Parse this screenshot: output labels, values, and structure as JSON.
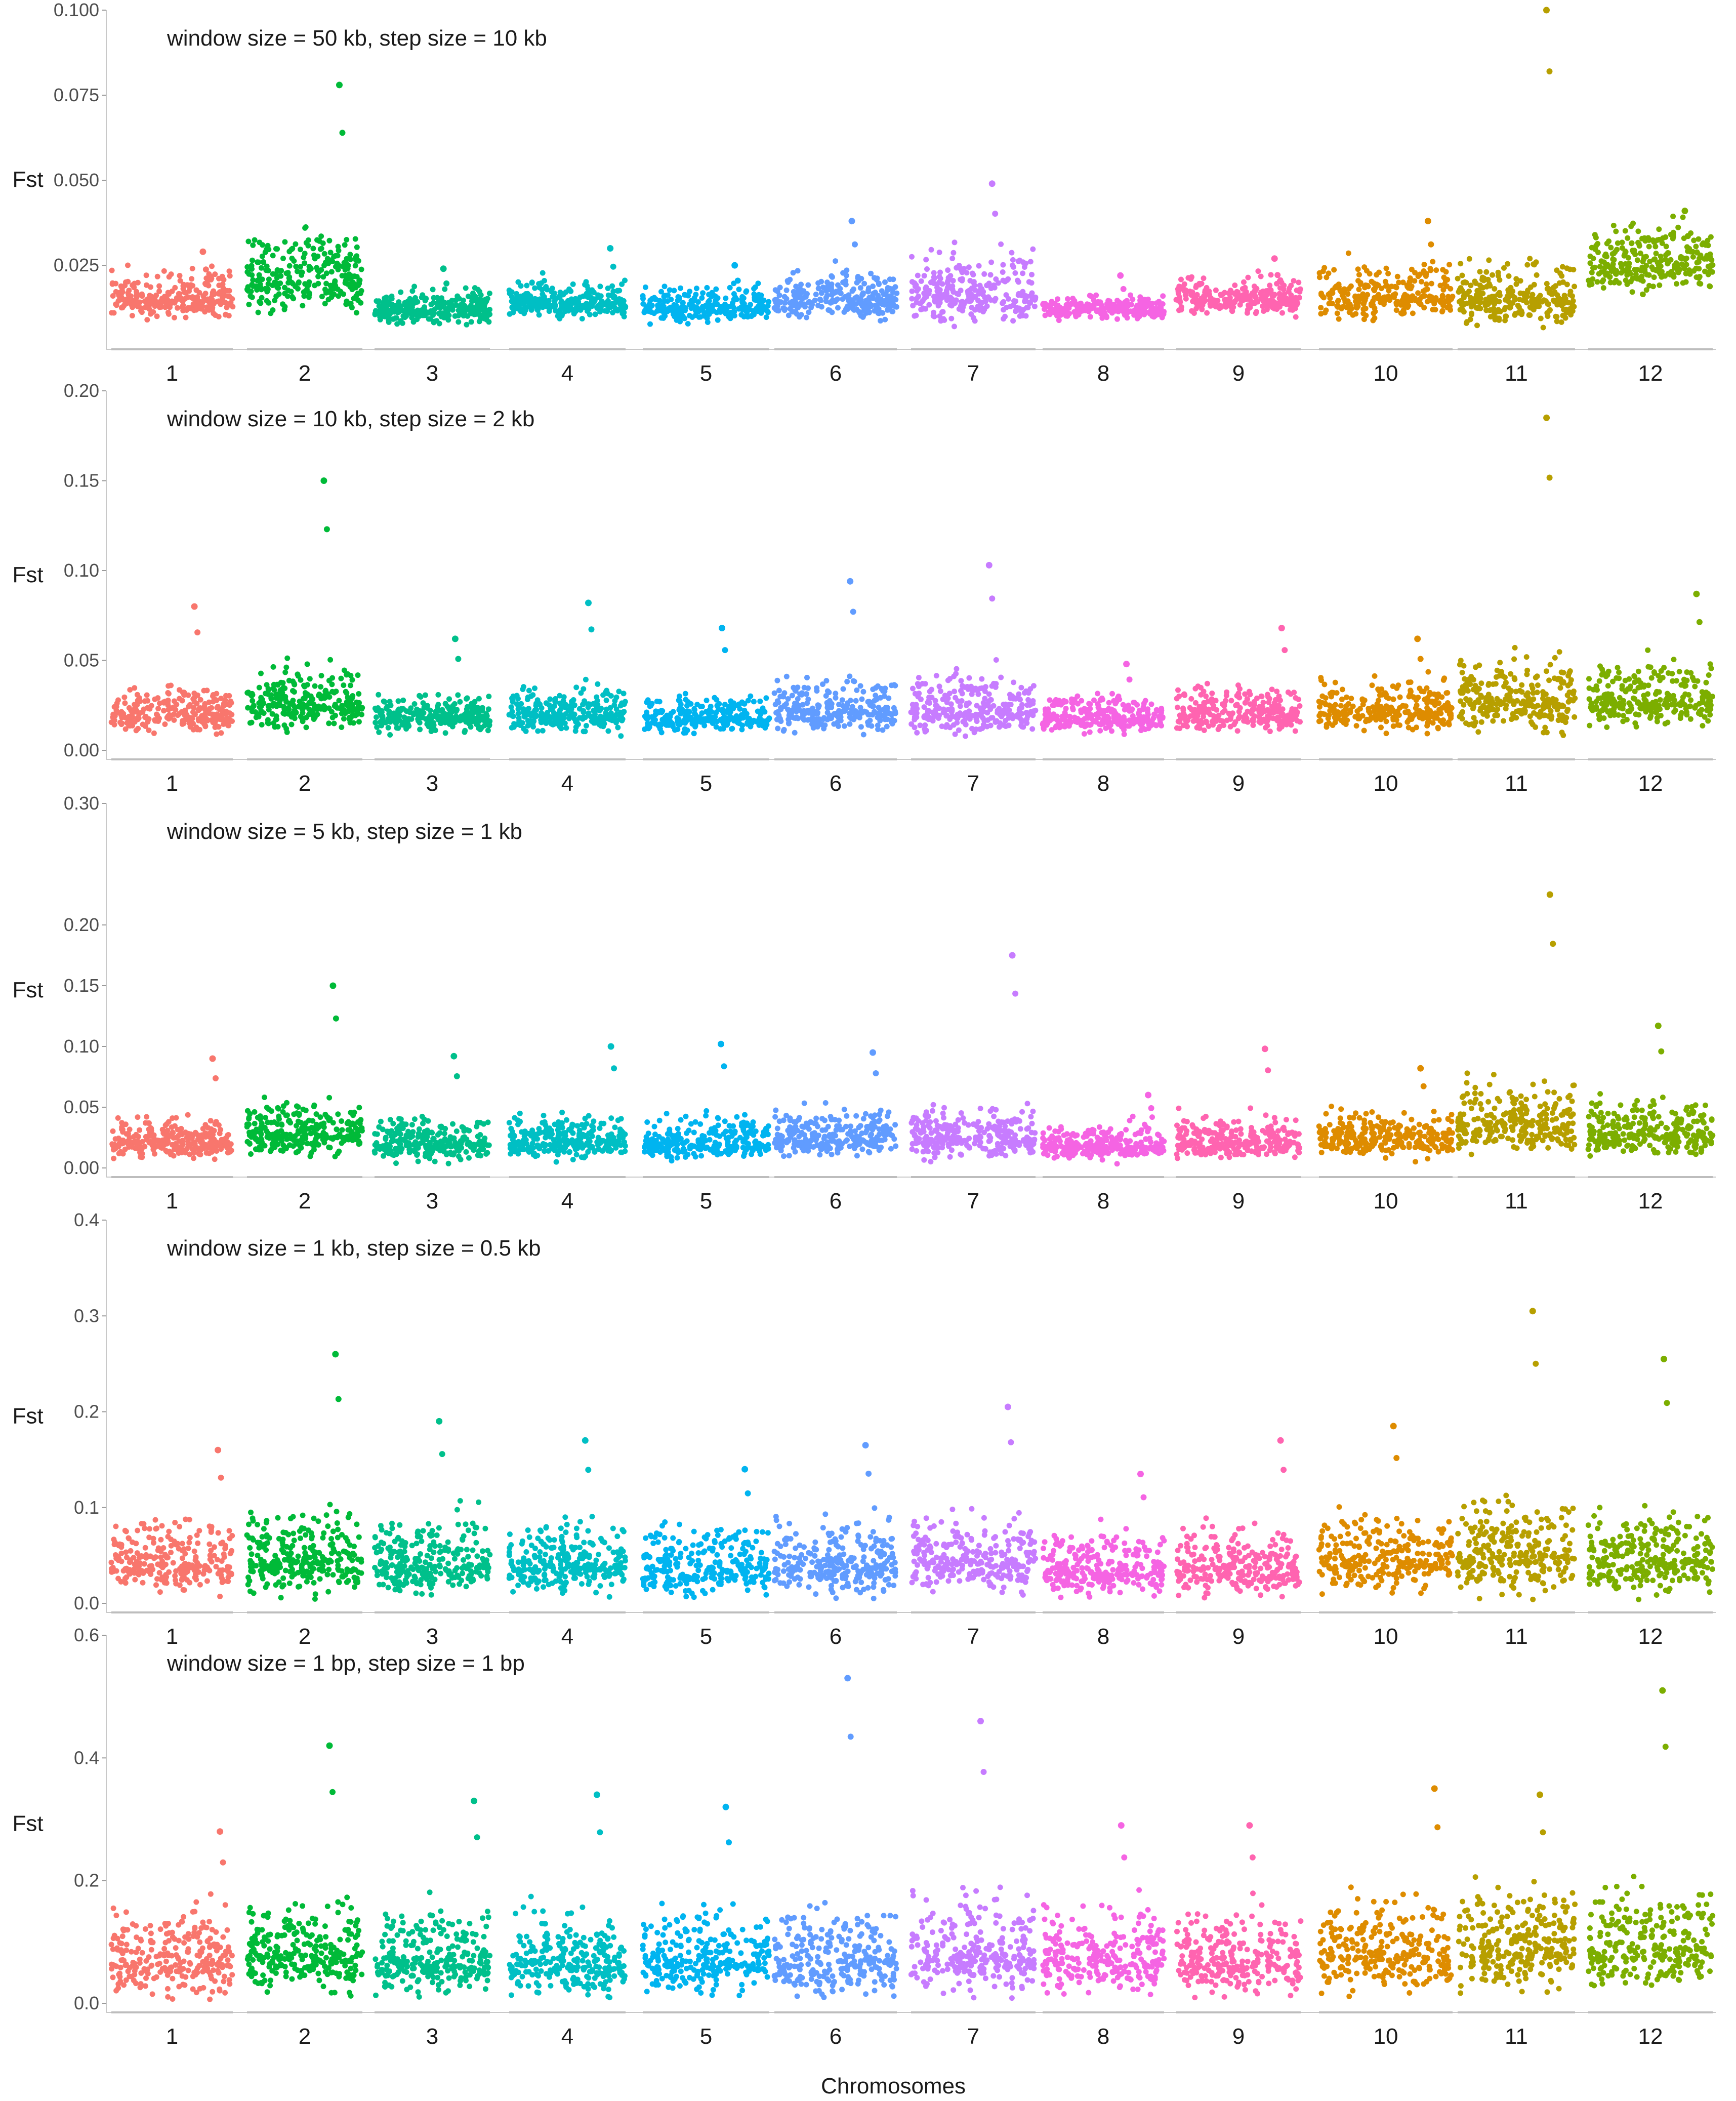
{
  "chart_data": {
    "type": "scatter",
    "figure_xlabel": "Chromosomes",
    "chromosomes": [
      "1",
      "2",
      "3",
      "4",
      "5",
      "6",
      "7",
      "8",
      "9",
      "10",
      "11",
      "12"
    ],
    "chromosome_colors": [
      "#F8766D",
      "#00BA38",
      "#00C08B",
      "#00BFC4",
      "#00B4F0",
      "#619CFF",
      "#C77CFF",
      "#F564E3",
      "#FF64B0",
      "#DE8C00",
      "#B79F00",
      "#7CAE00"
    ],
    "panels": [
      {
        "title": "window size = 50 kb, step size = 10 kb",
        "ylabel": "Fst",
        "ylim": [
          0.003,
          0.1
        ],
        "yticks": [
          0.025,
          0.05,
          0.075,
          0.1
        ],
        "ytick_labels": [
          "0.025",
          "0.050",
          "0.075",
          "0.100"
        ],
        "chromosome_levels": [
          {
            "chromosome": "1",
            "median": 0.015,
            "spread": 0.004,
            "peak": 0.029
          },
          {
            "chromosome": "2",
            "median": 0.02,
            "spread": 0.007,
            "peak": 0.078
          },
          {
            "chromosome": "3",
            "median": 0.012,
            "spread": 0.003,
            "peak": 0.024
          },
          {
            "chromosome": "4",
            "median": 0.014,
            "spread": 0.003,
            "peak": 0.03
          },
          {
            "chromosome": "5",
            "median": 0.013,
            "spread": 0.003,
            "peak": 0.025
          },
          {
            "chromosome": "6",
            "median": 0.015,
            "spread": 0.004,
            "peak": 0.038
          },
          {
            "chromosome": "7",
            "median": 0.016,
            "spread": 0.006,
            "peak": 0.049
          },
          {
            "chromosome": "8",
            "median": 0.012,
            "spread": 0.002,
            "peak": 0.022
          },
          {
            "chromosome": "9",
            "median": 0.015,
            "spread": 0.003,
            "peak": 0.027
          },
          {
            "chromosome": "10",
            "median": 0.016,
            "spread": 0.005,
            "peak": 0.038
          },
          {
            "chromosome": "11",
            "median": 0.015,
            "spread": 0.005,
            "peak": 0.1
          },
          {
            "chromosome": "12",
            "median": 0.025,
            "spread": 0.006,
            "peak": 0.041
          }
        ]
      },
      {
        "title": "window size = 10 kb, step size = 2 kb",
        "ylabel": "Fst",
        "ylim": [
          0.0,
          0.2
        ],
        "yticks": [
          0.0,
          0.05,
          0.1,
          0.15,
          0.2
        ],
        "ytick_labels": [
          "0.00",
          "0.05",
          "0.10",
          "0.15",
          "0.20"
        ],
        "chromosome_levels": [
          {
            "chromosome": "1",
            "median": 0.02,
            "spread": 0.007,
            "peak": 0.08
          },
          {
            "chromosome": "2",
            "median": 0.025,
            "spread": 0.01,
            "peak": 0.15
          },
          {
            "chromosome": "3",
            "median": 0.018,
            "spread": 0.006,
            "peak": 0.062
          },
          {
            "chromosome": "4",
            "median": 0.02,
            "spread": 0.007,
            "peak": 0.082
          },
          {
            "chromosome": "5",
            "median": 0.018,
            "spread": 0.006,
            "peak": 0.068
          },
          {
            "chromosome": "6",
            "median": 0.022,
            "spread": 0.008,
            "peak": 0.094
          },
          {
            "chromosome": "7",
            "median": 0.022,
            "spread": 0.01,
            "peak": 0.103
          },
          {
            "chromosome": "8",
            "median": 0.018,
            "spread": 0.006,
            "peak": 0.048
          },
          {
            "chromosome": "9",
            "median": 0.02,
            "spread": 0.007,
            "peak": 0.068
          },
          {
            "chromosome": "10",
            "median": 0.022,
            "spread": 0.008,
            "peak": 0.062
          },
          {
            "chromosome": "11",
            "median": 0.028,
            "spread": 0.013,
            "peak": 0.185
          },
          {
            "chromosome": "12",
            "median": 0.028,
            "spread": 0.01,
            "peak": 0.087
          }
        ]
      },
      {
        "title": "window size = 5 kb, step size = 1 kb",
        "ylabel": "Fst",
        "ylim": [
          0.0,
          0.3
        ],
        "yticks": [
          0.0,
          0.05,
          0.1,
          0.15,
          0.2,
          0.3
        ],
        "ytick_labels": [
          "0.00",
          "0.05",
          "0.10",
          "0.15",
          "0.20",
          "0.30"
        ],
        "chromosome_levels": [
          {
            "chromosome": "1",
            "median": 0.022,
            "spread": 0.01,
            "peak": 0.09
          },
          {
            "chromosome": "2",
            "median": 0.028,
            "spread": 0.013,
            "peak": 0.15
          },
          {
            "chromosome": "3",
            "median": 0.02,
            "spread": 0.01,
            "peak": 0.092
          },
          {
            "chromosome": "4",
            "median": 0.022,
            "spread": 0.01,
            "peak": 0.1
          },
          {
            "chromosome": "5",
            "median": 0.02,
            "spread": 0.01,
            "peak": 0.102
          },
          {
            "chromosome": "6",
            "median": 0.024,
            "spread": 0.011,
            "peak": 0.095
          },
          {
            "chromosome": "7",
            "median": 0.025,
            "spread": 0.012,
            "peak": 0.175
          },
          {
            "chromosome": "8",
            "median": 0.018,
            "spread": 0.008,
            "peak": 0.06
          },
          {
            "chromosome": "9",
            "median": 0.022,
            "spread": 0.01,
            "peak": 0.098
          },
          {
            "chromosome": "10",
            "median": 0.024,
            "spread": 0.011,
            "peak": 0.082
          },
          {
            "chromosome": "11",
            "median": 0.035,
            "spread": 0.017,
            "peak": 0.225
          },
          {
            "chromosome": "12",
            "median": 0.028,
            "spread": 0.012,
            "peak": 0.117
          }
        ]
      },
      {
        "title": "window size = 1 kb, step size = 0.5 kb",
        "ylabel": "Fst",
        "ylim": [
          0.0,
          0.4
        ],
        "yticks": [
          0.0,
          0.1,
          0.2,
          0.3,
          0.4
        ],
        "ytick_labels": [
          "0.0",
          "0.1",
          "0.2",
          "0.3",
          "0.4"
        ],
        "chromosome_levels": [
          {
            "chromosome": "1",
            "median": 0.04,
            "spread": 0.022,
            "peak": 0.16
          },
          {
            "chromosome": "2",
            "median": 0.045,
            "spread": 0.026,
            "peak": 0.26
          },
          {
            "chromosome": "3",
            "median": 0.04,
            "spread": 0.022,
            "peak": 0.19
          },
          {
            "chromosome": "4",
            "median": 0.04,
            "spread": 0.022,
            "peak": 0.17
          },
          {
            "chromosome": "5",
            "median": 0.038,
            "spread": 0.021,
            "peak": 0.14
          },
          {
            "chromosome": "6",
            "median": 0.04,
            "spread": 0.022,
            "peak": 0.165
          },
          {
            "chromosome": "7",
            "median": 0.045,
            "spread": 0.024,
            "peak": 0.205
          },
          {
            "chromosome": "8",
            "median": 0.035,
            "spread": 0.019,
            "peak": 0.135
          },
          {
            "chromosome": "9",
            "median": 0.038,
            "spread": 0.021,
            "peak": 0.17
          },
          {
            "chromosome": "10",
            "median": 0.045,
            "spread": 0.024,
            "peak": 0.185
          },
          {
            "chromosome": "11",
            "median": 0.05,
            "spread": 0.028,
            "peak": 0.305
          },
          {
            "chromosome": "12",
            "median": 0.045,
            "spread": 0.024,
            "peak": 0.255
          }
        ]
      },
      {
        "title": "window size = 1 bp, step size = 1 bp",
        "ylabel": "Fst",
        "ylim": [
          0.0,
          0.6
        ],
        "yticks": [
          0.0,
          0.2,
          0.4,
          0.6
        ],
        "ytick_labels": [
          "0.0",
          "0.2",
          "0.4",
          "0.6"
        ],
        "chromosome_levels": [
          {
            "chromosome": "1",
            "median": 0.07,
            "spread": 0.04,
            "peak": 0.28
          },
          {
            "chromosome": "2",
            "median": 0.08,
            "spread": 0.045,
            "peak": 0.42
          },
          {
            "chromosome": "3",
            "median": 0.07,
            "spread": 0.04,
            "peak": 0.33
          },
          {
            "chromosome": "4",
            "median": 0.07,
            "spread": 0.04,
            "peak": 0.34
          },
          {
            "chromosome": "5",
            "median": 0.07,
            "spread": 0.04,
            "peak": 0.32
          },
          {
            "chromosome": "6",
            "median": 0.07,
            "spread": 0.042,
            "peak": 0.53
          },
          {
            "chromosome": "7",
            "median": 0.08,
            "spread": 0.045,
            "peak": 0.46
          },
          {
            "chromosome": "8",
            "median": 0.07,
            "spread": 0.04,
            "peak": 0.29
          },
          {
            "chromosome": "9",
            "median": 0.07,
            "spread": 0.04,
            "peak": 0.29
          },
          {
            "chromosome": "10",
            "median": 0.08,
            "spread": 0.045,
            "peak": 0.35
          },
          {
            "chromosome": "11",
            "median": 0.09,
            "spread": 0.05,
            "peak": 0.34
          },
          {
            "chromosome": "12",
            "median": 0.09,
            "spread": 0.05,
            "peak": 0.51
          }
        ]
      }
    ]
  }
}
